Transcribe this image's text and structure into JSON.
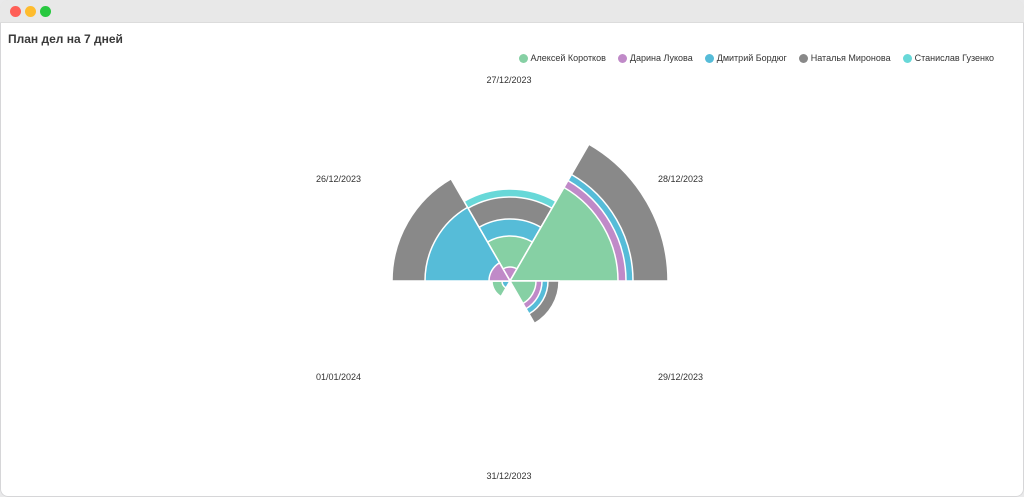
{
  "window": {
    "buttons": {
      "close_color": "#ff5f57",
      "min_color": "#febc2e",
      "max_color": "#28c840"
    }
  },
  "chart_data": {
    "type": "polar-area",
    "title": "План дел на 7 дней",
    "legend_position": "top-right",
    "categories": [
      "27/12/2023",
      "28/12/2023",
      "29/12/2023",
      "31/12/2023",
      "01/01/2024",
      "26/12/2023"
    ],
    "series": [
      {
        "name": "Алексей Коротков",
        "color": "#86d0a4",
        "values": [
          45,
          108,
          26,
          0,
          18,
          0
        ]
      },
      {
        "name": "Дарина Лукова",
        "color": "#c08ac8",
        "values": [
          14,
          116,
          32,
          0,
          0,
          21
        ]
      },
      {
        "name": "Дмитрий Бордюг",
        "color": "#56bcd8",
        "values": [
          62,
          123,
          38,
          0,
          8,
          85
        ]
      },
      {
        "name": "Наталья Миронова",
        "color": "#898989",
        "values": [
          84,
          158,
          49,
          0,
          0,
          118
        ]
      },
      {
        "name": "Станислав Гузенко",
        "color": "#68d8d8",
        "values": [
          92,
          0,
          0,
          0,
          0,
          0
        ]
      }
    ]
  }
}
